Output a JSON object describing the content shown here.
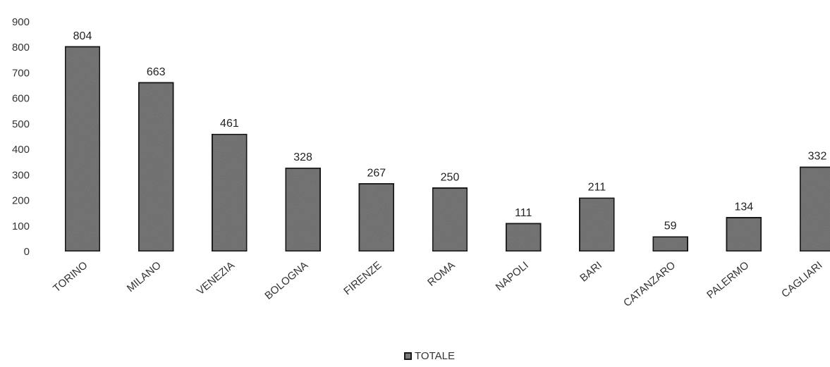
{
  "chart_data": {
    "type": "bar",
    "categories": [
      "TORINO",
      "MILANO",
      "VENEZIA",
      "BOLOGNA",
      "FIRENZE",
      "ROMA",
      "NAPOLI",
      "BARI",
      "CATANZARO",
      "PALERMO",
      "CAGLIARI"
    ],
    "series": [
      {
        "name": "TOTALE",
        "values": [
          804,
          663,
          461,
          328,
          267,
          250,
          111,
          211,
          59,
          134,
          332
        ]
      }
    ],
    "ylim": [
      0,
      900
    ],
    "yticks": [
      0,
      100,
      200,
      300,
      400,
      500,
      600,
      700,
      800,
      900
    ],
    "grid": false,
    "legend": "bottom-center",
    "bar_color": "#7a7a7a",
    "bar_border_color": "#1a1a1a"
  }
}
